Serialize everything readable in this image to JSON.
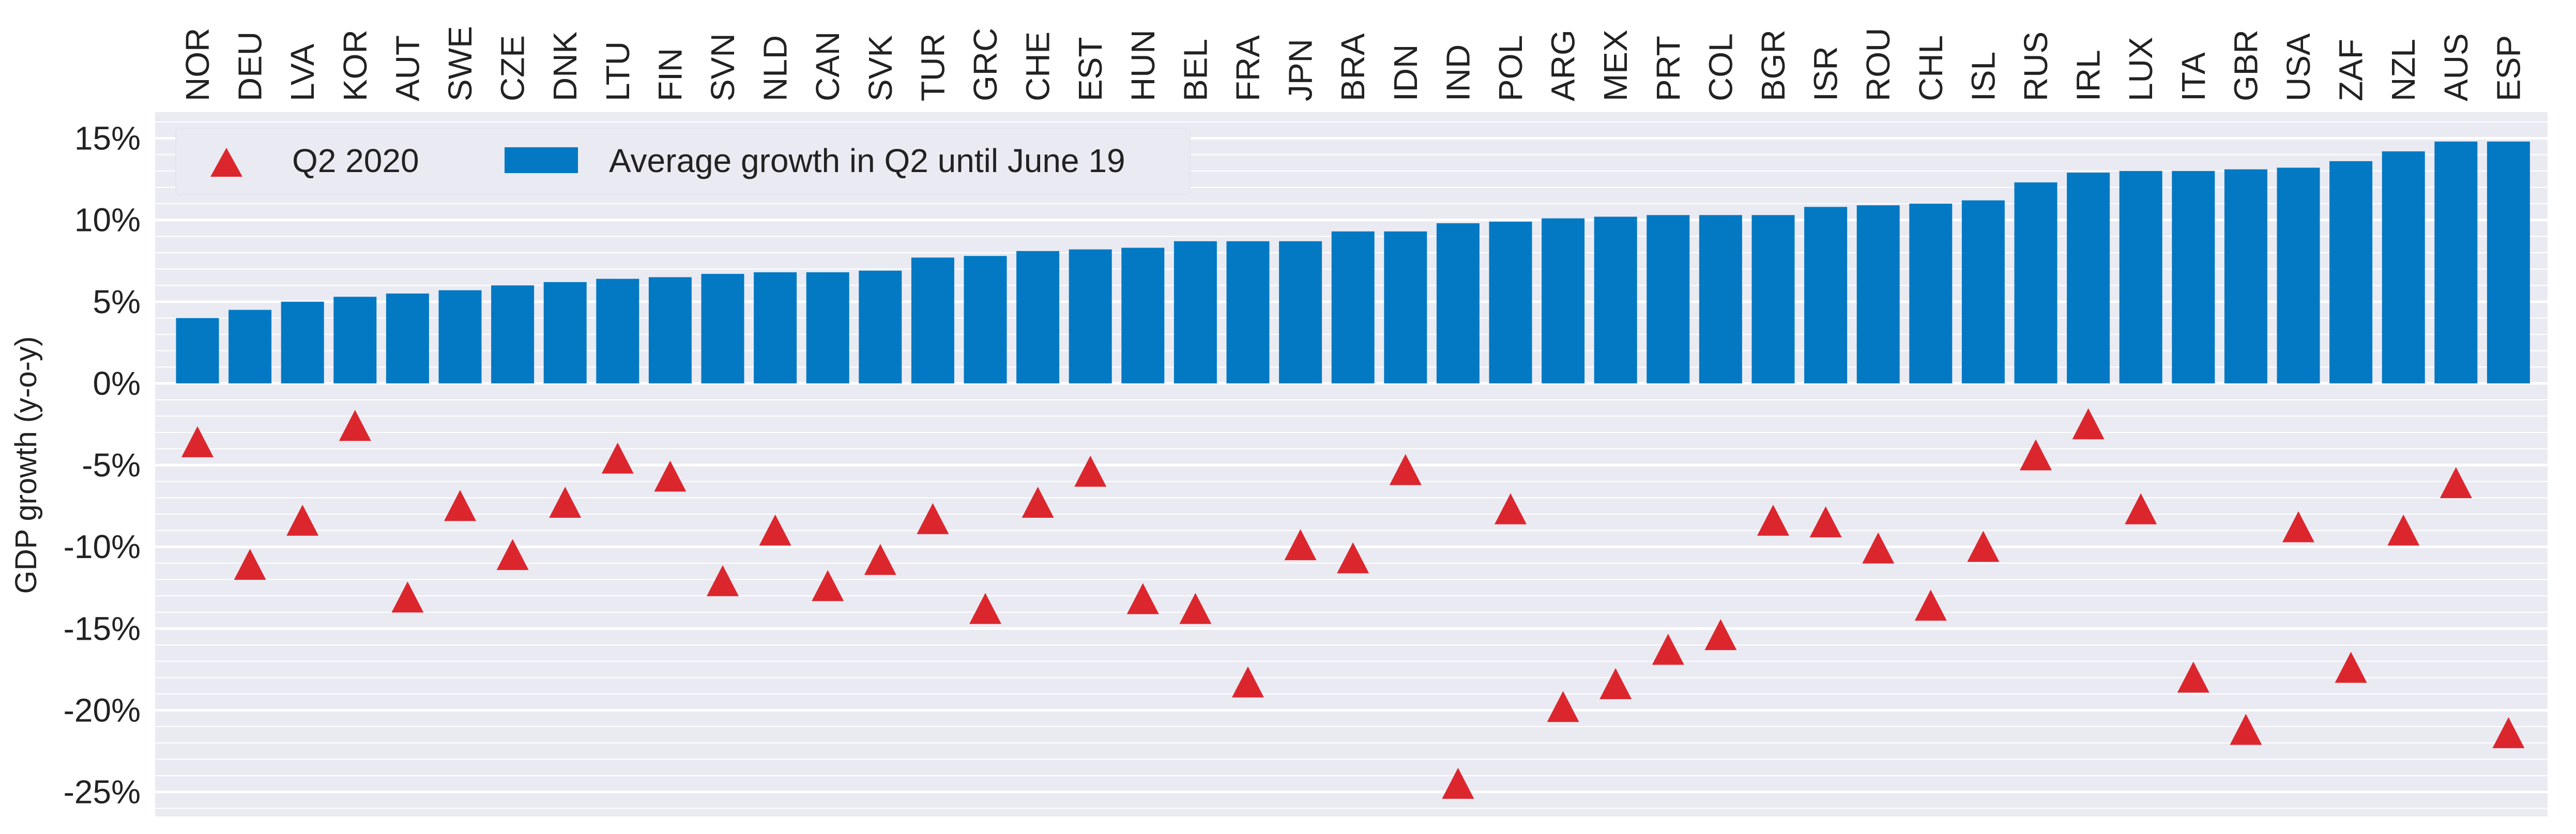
{
  "chart_data": {
    "type": "bar",
    "categories": [
      "NOR",
      "DEU",
      "LVA",
      "KOR",
      "AUT",
      "SWE",
      "CZE",
      "DNK",
      "LTU",
      "FIN",
      "SVN",
      "NLD",
      "CAN",
      "SVK",
      "TUR",
      "GRC",
      "CHE",
      "EST",
      "HUN",
      "BEL",
      "FRA",
      "JPN",
      "BRA",
      "IDN",
      "IND",
      "POL",
      "ARG",
      "MEX",
      "PRT",
      "COL",
      "BGR",
      "ISR",
      "ROU",
      "CHL",
      "ISL",
      "RUS",
      "IRL",
      "LUX",
      "ITA",
      "GBR",
      "USA",
      "ZAF",
      "NZL",
      "AUS",
      "ESP"
    ],
    "series": [
      {
        "name": "Average growth in Q2 until June 19",
        "kind": "bar",
        "color": "#0379c3",
        "values": [
          4.0,
          4.5,
          5.0,
          5.3,
          5.5,
          5.7,
          6.0,
          6.2,
          6.4,
          6.5,
          6.7,
          6.8,
          6.8,
          6.9,
          7.7,
          7.8,
          8.1,
          8.2,
          8.3,
          8.7,
          8.7,
          8.7,
          9.3,
          9.3,
          9.8,
          9.9,
          10.1,
          10.2,
          10.3,
          10.3,
          10.3,
          10.8,
          10.9,
          11.0,
          11.2,
          12.3,
          12.9,
          13.0,
          13.0,
          13.1,
          13.2,
          13.6,
          14.2,
          14.8,
          14.8
        ]
      },
      {
        "name": "Q2 2020",
        "kind": "marker",
        "marker": "triangle",
        "color": "#dc262d",
        "values": [
          -3.8,
          -11.3,
          -8.6,
          -2.8,
          -13.3,
          -7.7,
          -10.7,
          -7.5,
          -4.8,
          -5.9,
          -12.3,
          -9.2,
          -12.6,
          -11.0,
          -8.5,
          -14.0,
          -7.5,
          -5.6,
          -13.4,
          -14.0,
          -18.5,
          -10.1,
          -10.9,
          -5.5,
          -24.7,
          -7.9,
          -20.0,
          -18.6,
          -16.5,
          -15.6,
          -8.6,
          -8.7,
          -10.3,
          -13.8,
          -10.2,
          -4.6,
          -2.7,
          -7.9,
          -18.2,
          -21.4,
          -9.0,
          -17.6,
          -9.2,
          -6.3,
          -21.6
        ]
      }
    ],
    "ylabel": "GDP growth (y-o-y)",
    "ylim": [
      -26.5,
      16.6
    ],
    "yticks": [
      15,
      10,
      5,
      0,
      -5,
      -10,
      -15,
      -20,
      -25
    ],
    "ytick_labels": [
      "15%",
      "10%",
      "5%",
      "0%",
      "-5%",
      "-10%",
      "-15%",
      "-20%",
      "-25%"
    ],
    "minor_grid_step": 1,
    "grid": true,
    "background": "#eaeaf2",
    "legend": {
      "position": "top-left",
      "items": [
        "Q2 2020",
        "Average growth in Q2 until June 19"
      ]
    }
  }
}
